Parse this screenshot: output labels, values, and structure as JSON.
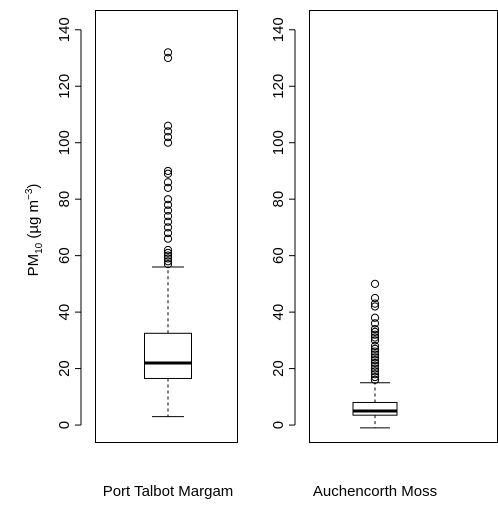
{
  "chart_data": {
    "type": "boxplot",
    "ylabel": {
      "base": "PM",
      "sub": "10",
      "unit_pre": " (µg m",
      "sup": "−3",
      "unit_post": ")"
    },
    "ylim": [
      -6,
      147
    ],
    "yticks": [
      0,
      20,
      40,
      60,
      80,
      100,
      120,
      140
    ],
    "grid": false,
    "panels": [
      {
        "name": "Port Talbot Margam",
        "whisker_low": 3,
        "q1": 16.5,
        "median": 22,
        "q3": 32.5,
        "whisker_high": 56,
        "outliers": [
          57,
          58,
          59,
          60,
          61,
          62,
          66,
          68,
          70,
          72,
          74,
          76,
          78,
          80,
          84,
          86,
          89,
          90,
          100,
          102,
          104,
          106,
          130,
          132
        ]
      },
      {
        "name": "Auchencorth Moss",
        "whisker_low": -1,
        "q1": 3.5,
        "median": 5,
        "q3": 8,
        "whisker_high": 15,
        "outliers": [
          16,
          17,
          18,
          19,
          20,
          21,
          22,
          23,
          24,
          25,
          26,
          27,
          28,
          30,
          31,
          32,
          33,
          34,
          36,
          38,
          42,
          43,
          45,
          50
        ]
      }
    ]
  }
}
